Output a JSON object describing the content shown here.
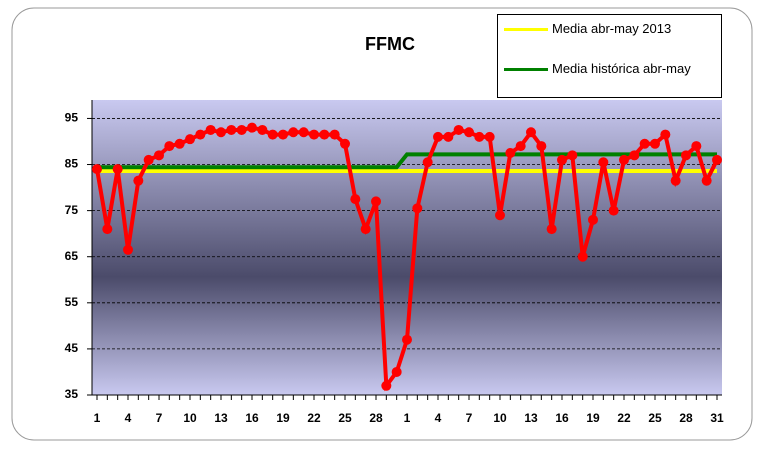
{
  "chart_data": {
    "type": "line",
    "title": "FFMC",
    "categories": [
      1,
      null,
      null,
      4,
      null,
      null,
      7,
      null,
      null,
      10,
      null,
      null,
      13,
      null,
      null,
      16,
      null,
      null,
      19,
      null,
      null,
      22,
      null,
      null,
      25,
      null,
      null,
      28,
      null,
      null,
      1,
      null,
      null,
      4,
      null,
      null,
      7,
      null,
      null,
      10,
      null,
      null,
      13,
      null,
      null,
      16,
      null,
      null,
      19,
      null,
      null,
      22,
      null,
      null,
      25,
      null,
      null,
      28,
      null,
      null,
      31
    ],
    "series": [
      {
        "color": "#ff0000",
        "markers": true,
        "values": [
          84,
          71,
          84,
          66.5,
          81.5,
          86,
          87,
          89,
          89.5,
          90.5,
          91.5,
          92.5,
          92,
          92.5,
          92.5,
          93,
          92.5,
          91.5,
          91.5,
          92,
          92,
          91.5,
          91.5,
          91.5,
          89.5,
          77.5,
          71,
          77,
          37,
          40,
          47,
          75.5,
          85.5,
          91,
          91,
          92.5,
          92,
          91,
          91,
          74,
          87.5,
          89,
          92,
          89,
          71,
          86,
          87,
          65,
          73,
          85.5,
          75,
          86,
          87,
          89.5,
          89.5,
          91.5,
          81.5,
          87,
          89,
          81.5,
          86
        ]
      },
      {
        "name": "Media abr-may 2013",
        "color": "#ffff00",
        "values": [
          83.6,
          83.6,
          83.6,
          83.6,
          83.6,
          83.6,
          83.6,
          83.6,
          83.6,
          83.6,
          83.6,
          83.6,
          83.6,
          83.6,
          83.6,
          83.6,
          83.6,
          83.6,
          83.6,
          83.6,
          83.6,
          83.6,
          83.6,
          83.6,
          83.6,
          83.6,
          83.6,
          83.6,
          83.6,
          83.6,
          83.6,
          83.6,
          83.6,
          83.6,
          83.6,
          83.6,
          83.6,
          83.6,
          83.6,
          83.6,
          83.6,
          83.6,
          83.6,
          83.6,
          83.6,
          83.6,
          83.6,
          83.6,
          83.6,
          83.6,
          83.6,
          83.6,
          83.6,
          83.6,
          83.6,
          83.6,
          83.6,
          83.6,
          83.6,
          83.6,
          83.6
        ]
      },
      {
        "name": "Media histórica abr-may",
        "color": "#008000",
        "values": [
          84.4,
          84.4,
          84.4,
          84.4,
          84.4,
          84.4,
          84.4,
          84.4,
          84.4,
          84.4,
          84.4,
          84.4,
          84.4,
          84.4,
          84.4,
          84.4,
          84.4,
          84.4,
          84.4,
          84.4,
          84.4,
          84.4,
          84.4,
          84.4,
          84.4,
          84.4,
          84.4,
          84.4,
          84.4,
          84.4,
          87.2,
          87.2,
          87.2,
          87.2,
          87.2,
          87.2,
          87.2,
          87.2,
          87.2,
          87.2,
          87.2,
          87.2,
          87.2,
          87.2,
          87.2,
          87.2,
          87.2,
          87.2,
          87.2,
          87.2,
          87.2,
          87.2,
          87.2,
          87.2,
          87.2,
          87.2,
          87.2,
          87.2,
          87.2,
          87.2,
          87.2
        ]
      }
    ],
    "ylim": [
      35,
      99
    ],
    "yticks": [
      35,
      45,
      55,
      65,
      75,
      85,
      95
    ],
    "grid": true
  }
}
